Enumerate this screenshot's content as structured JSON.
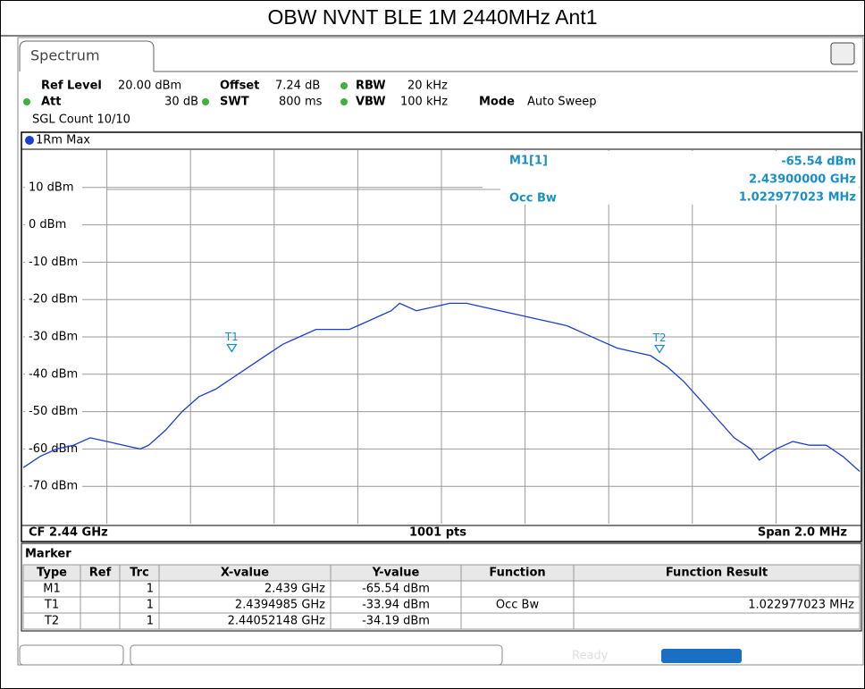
{
  "title": "OBW NVNT BLE 1M 2440MHz Ant1",
  "tab": "Spectrum",
  "settings": {
    "ref_level_label": "Ref Level",
    "ref_level": "20.00 dBm",
    "offset_label": "Offset",
    "offset": "7.24 dB",
    "rbw_label": "RBW",
    "rbw": "20 kHz",
    "att_label": "Att",
    "att": "30 dB",
    "swt_label": "SWT",
    "swt": "800 ms",
    "vbw_label": "VBW",
    "vbw": "100 kHz",
    "mode_label": "Mode",
    "mode": "Auto Sweep",
    "count": "SGL Count 10/10"
  },
  "chart_data": {
    "type": "line",
    "trace_label": "1Rm Max",
    "xlim": [
      2.439,
      2.441
    ],
    "ylim": [
      -80,
      20
    ],
    "yticks": [
      {
        "value": 10,
        "label": "10 dBm"
      },
      {
        "value": 0,
        "label": "0 dBm"
      },
      {
        "value": -10,
        "label": "-10 dBm"
      },
      {
        "value": -20,
        "label": "-20 dBm"
      },
      {
        "value": -30,
        "label": "-30 dBm"
      },
      {
        "value": -40,
        "label": "-40 dBm"
      },
      {
        "value": -50,
        "label": "-50 dBm"
      },
      {
        "value": -60,
        "label": "-60 dBm"
      },
      {
        "value": -70,
        "label": "-70 dBm"
      }
    ],
    "grid": true,
    "series": [
      {
        "name": "1Rm Max",
        "color": "#1a3fcf",
        "x": [
          2.439,
          2.43904,
          2.43908,
          2.43912,
          2.43916,
          2.4392,
          2.43924,
          2.43928,
          2.4393,
          2.43934,
          2.43938,
          2.43942,
          2.43946,
          2.4395,
          2.43954,
          2.43958,
          2.43962,
          2.43966,
          2.4397,
          2.43974,
          2.43978,
          2.4398,
          2.43984,
          2.43988,
          2.4399,
          2.43994,
          2.43998,
          2.44002,
          2.44006,
          2.4401,
          2.44014,
          2.44018,
          2.44022,
          2.44026,
          2.4403,
          2.44034,
          2.44038,
          2.44042,
          2.44046,
          2.4405,
          2.44054,
          2.44058,
          2.44062,
          2.44066,
          2.4407,
          2.44074,
          2.44076,
          2.4408,
          2.44084,
          2.44088,
          2.44092,
          2.44096,
          2.441
        ],
        "values": [
          -65,
          -62,
          -60,
          -59,
          -57,
          -58,
          -59,
          -60,
          -59,
          -55,
          -50,
          -46,
          -44,
          -41,
          -38,
          -35,
          -32,
          -30,
          -28,
          -28,
          -28,
          -27,
          -25,
          -23,
          -21,
          -23,
          -22,
          -21,
          -21,
          -22,
          -23,
          -24,
          -25,
          -26,
          -27,
          -29,
          -31,
          -33,
          -34,
          -35,
          -38,
          -42,
          -47,
          -52,
          -57,
          -60,
          -63,
          -60,
          -58,
          -59,
          -59,
          -62,
          -66
        ]
      }
    ],
    "markers": [
      {
        "name": "T1",
        "x": 2.4394985,
        "y": -33.94
      },
      {
        "name": "T2",
        "x": 2.44052148,
        "y": -34.19
      }
    ],
    "marker_info": {
      "name": "M1[1]",
      "level": "-65.54 dBm",
      "freq": "2.43900000 GHz",
      "function": "Occ Bw",
      "result": "1.022977023 MHz"
    },
    "center": "CF 2.44 GHz",
    "points": "1001 pts",
    "span": "Span 2.0 MHz"
  },
  "marker_table": {
    "title": "Marker",
    "headers": [
      "Type",
      "Ref",
      "Trc",
      "X-value",
      "Y-value",
      "Function",
      "Function Result"
    ],
    "rows": [
      [
        "M1",
        "",
        "1",
        "2.439 GHz",
        "-65.54 dBm",
        "",
        ""
      ],
      [
        "T1",
        "",
        "1",
        "2.4394985 GHz",
        "-33.94 dBm",
        "Occ Bw",
        "1.022977023 MHz"
      ],
      [
        "T2",
        "",
        "1",
        "2.44052148 GHz",
        "-34.19 dBm",
        "",
        ""
      ]
    ]
  },
  "status": "Ready"
}
